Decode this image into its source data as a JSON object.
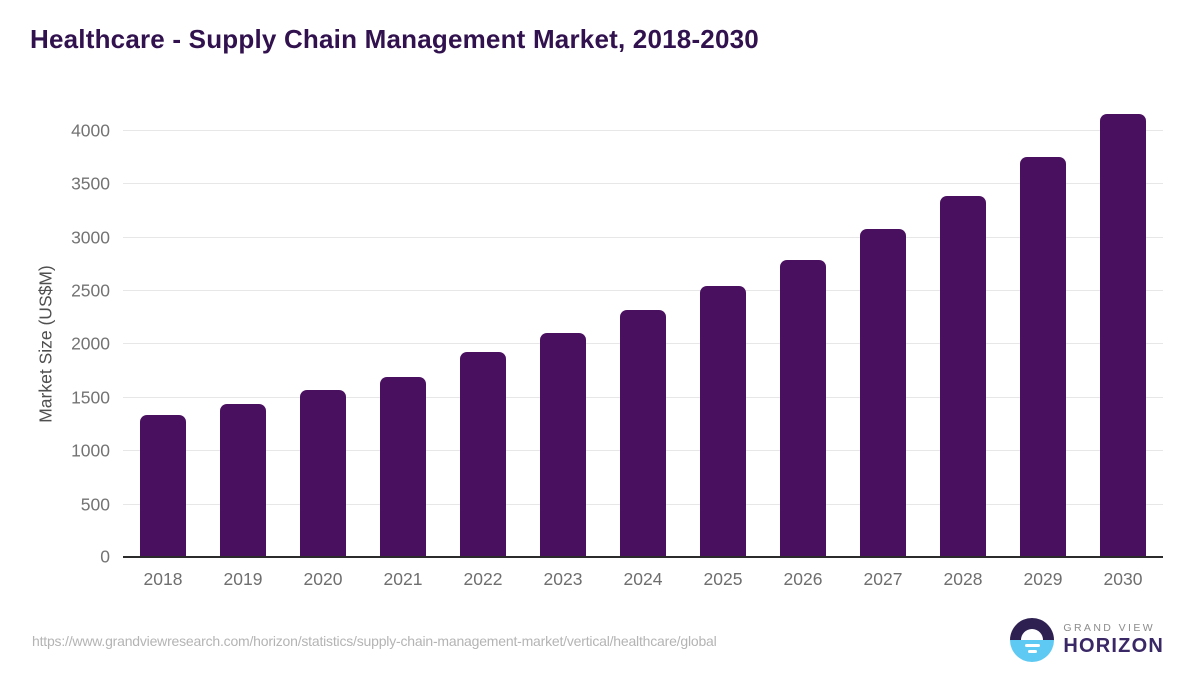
{
  "title": "Healthcare - Supply Chain Management Market, 2018-2030",
  "chart_data": {
    "type": "bar",
    "categories": [
      "2018",
      "2019",
      "2020",
      "2021",
      "2022",
      "2023",
      "2024",
      "2025",
      "2026",
      "2027",
      "2028",
      "2029",
      "2030"
    ],
    "values": [
      1340,
      1440,
      1570,
      1700,
      1930,
      2110,
      2320,
      2550,
      2790,
      3080,
      3390,
      3760,
      4160
    ],
    "title": "Healthcare - Supply Chain Management Market, 2018-2030",
    "xlabel": "",
    "ylabel": "Market Size (US$M)",
    "ylim": [
      0,
      4000
    ],
    "yticks": [
      0,
      500,
      1000,
      1500,
      2000,
      2500,
      3000,
      3500,
      4000
    ],
    "grid": "horizontal",
    "legend": "none",
    "bar_color": "#4a1060"
  },
  "colors": {
    "bar": "#4a1060",
    "title_text": "#31124e",
    "axis_line": "#2b2b2b",
    "gridline": "#e7e7e7",
    "tick_label": "#737373",
    "x_label": "#6e6e6e",
    "url_text": "#b4b4b4",
    "logo_dark": "#2e2152",
    "logo_blue": "#5ec9f2"
  },
  "footer": {
    "source_url": "https://www.grandviewresearch.com/horizon/statistics/supply-chain-management-market/vertical/healthcare/global",
    "logo": {
      "icon": "horizon-sunset-icon",
      "line1": "GRAND VIEW",
      "line2": "HORIZON"
    }
  }
}
